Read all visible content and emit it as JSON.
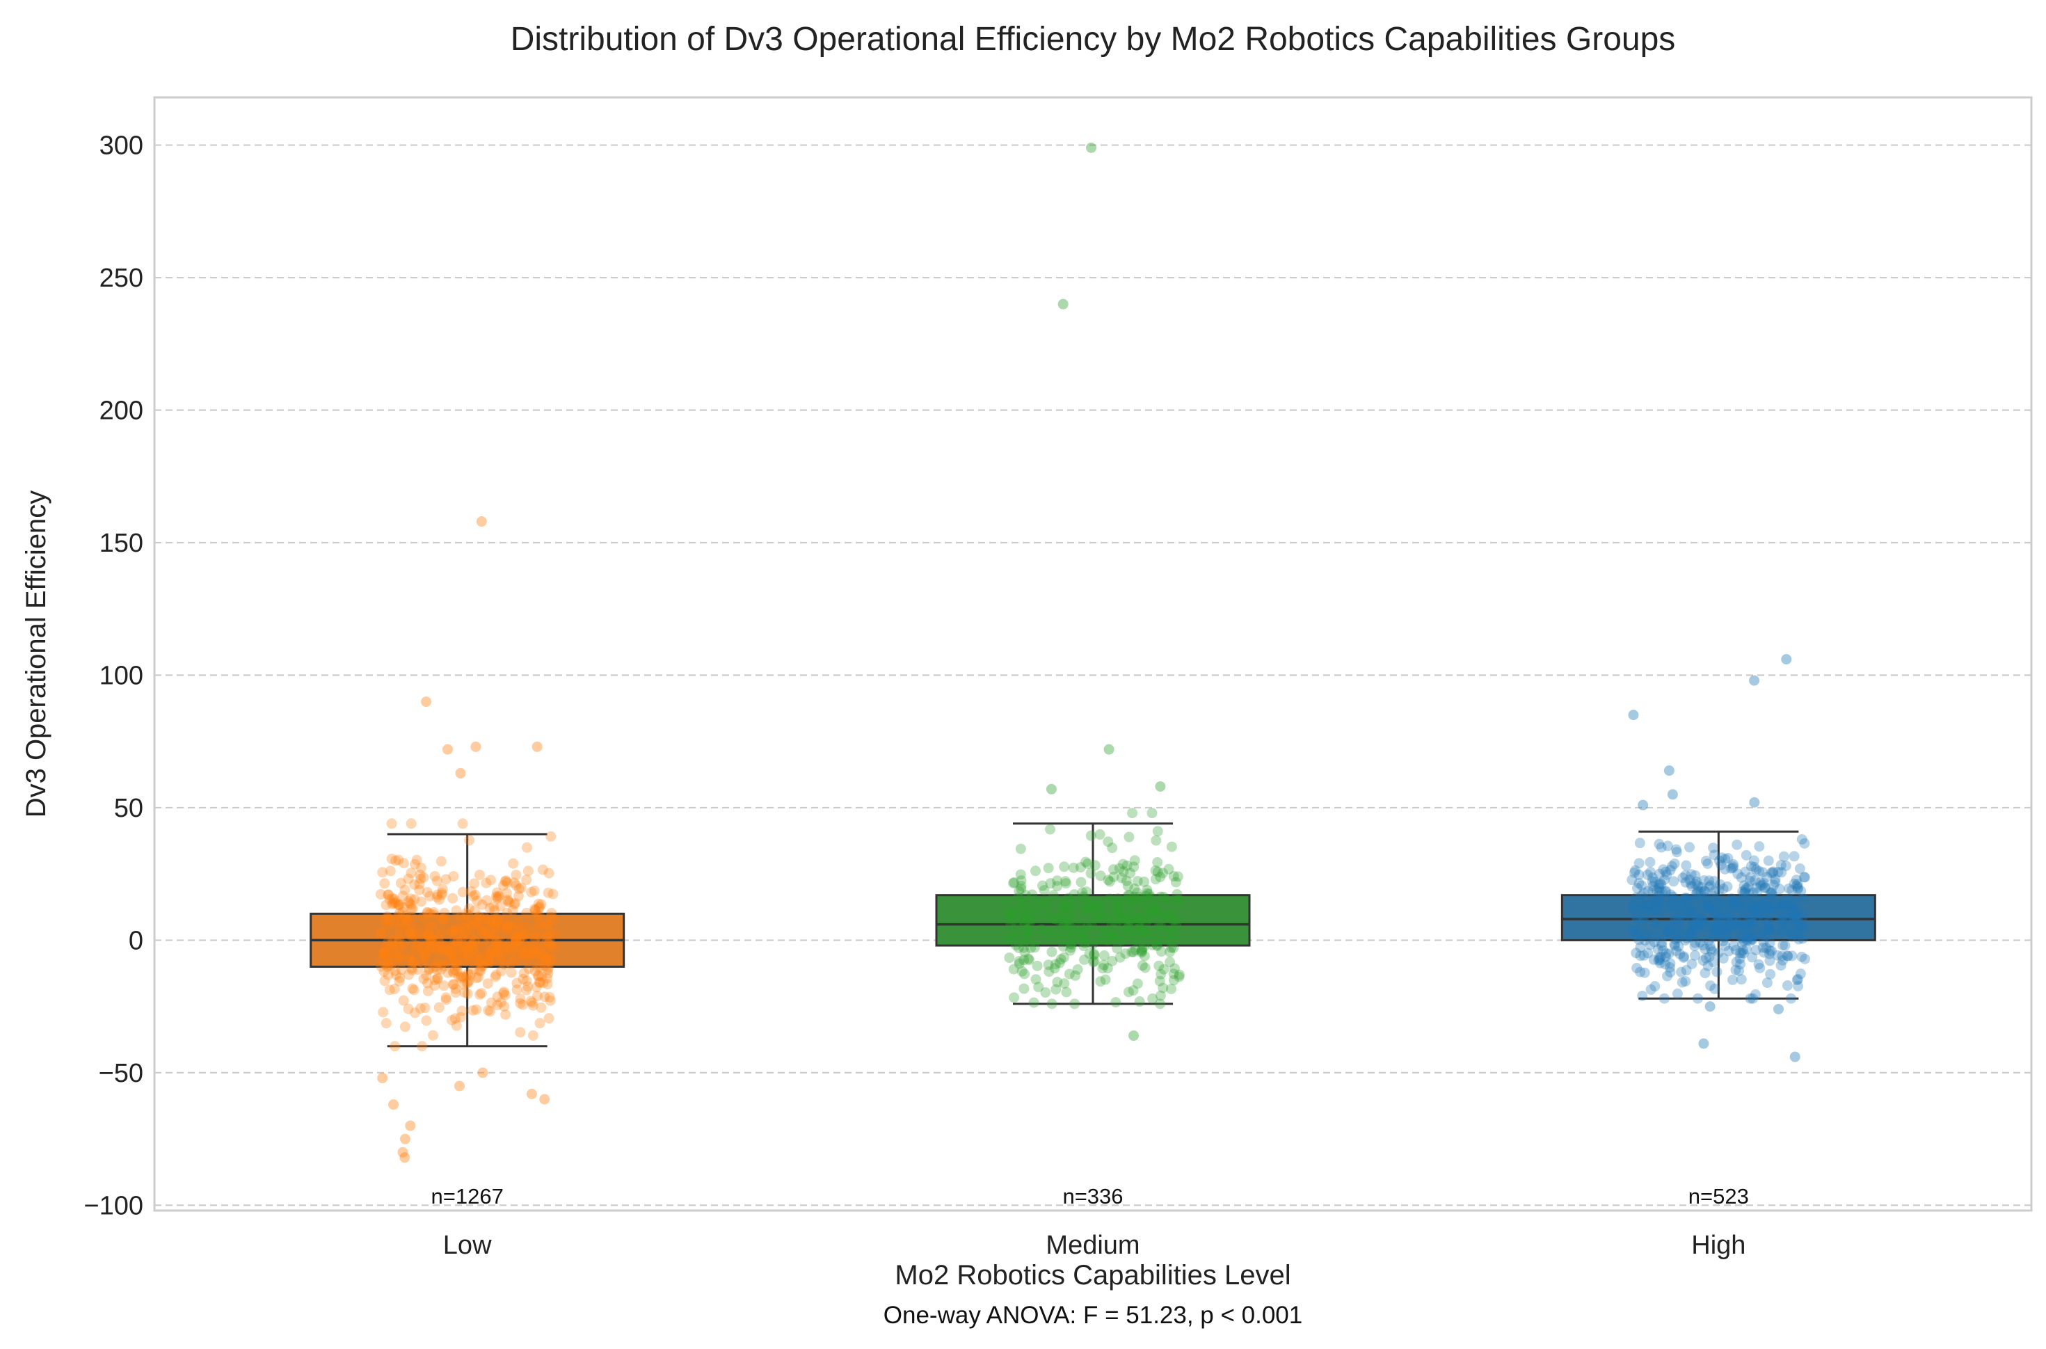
{
  "chart_data": {
    "type": "box",
    "title": "Distribution of Dv3 Operational Efficiency by Mo2 Robotics Capabilities Groups",
    "xlabel": "Mo2 Robotics Capabilities Level",
    "ylabel": "Dv3 Operational Efficiency",
    "footnote": "One-way ANOVA: F = 51.23, p < 0.001",
    "ylim": [
      -102,
      318
    ],
    "yticks": [
      -100,
      -50,
      0,
      50,
      100,
      150,
      200,
      250,
      300
    ],
    "ytick_labels": [
      "−100",
      "−50",
      "0",
      "50",
      "100",
      "150",
      "200",
      "250",
      "300"
    ],
    "grid": "horizontal dashed",
    "categories": [
      "Low",
      "Medium",
      "High"
    ],
    "series": [
      {
        "category": "Low",
        "count_label": "n=1267",
        "n": 1267,
        "color": "#ff7f0e",
        "box_color": "#e1812c",
        "q1": -10,
        "median": 0,
        "q3": 10,
        "whisker_low": -40,
        "whisker_high": 40,
        "outliers": [
          158,
          90,
          73,
          72,
          73,
          63,
          -50,
          -52,
          -55,
          -58,
          -60,
          -62,
          -70,
          -75,
          -80,
          -82
        ]
      },
      {
        "category": "Medium",
        "count_label": "n=336",
        "n": 336,
        "color": "#2ca02c",
        "box_color": "#3a923a",
        "q1": -2,
        "median": 6,
        "q3": 17,
        "whisker_low": -24,
        "whisker_high": 44,
        "outliers": [
          299,
          240,
          72,
          58,
          57,
          -36
        ]
      },
      {
        "category": "High",
        "count_label": "n=523",
        "n": 523,
        "color": "#1f77b4",
        "box_color": "#3274a1",
        "q1": 0,
        "median": 8,
        "q3": 17,
        "whisker_low": -22,
        "whisker_high": 41,
        "outliers": [
          106,
          98,
          85,
          64,
          55,
          52,
          51,
          -25,
          -26,
          -39,
          -44
        ]
      }
    ]
  }
}
